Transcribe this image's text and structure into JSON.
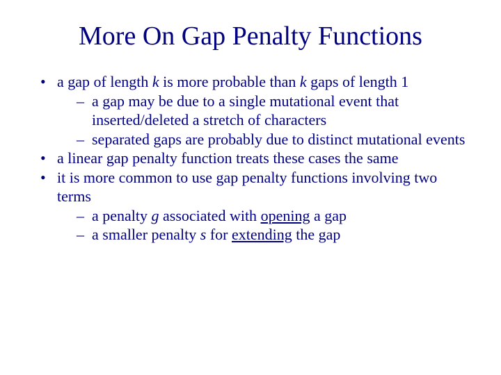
{
  "colors": {
    "text": "#000080",
    "background": "#ffffff"
  },
  "typography": {
    "title_family": "Times New Roman",
    "title_size_pt": 38,
    "body_family": "Times New Roman",
    "body_size_pt": 22
  },
  "title": "More On Gap Penalty Functions",
  "b1": {
    "pre": "a gap of length ",
    "k1": "k",
    "mid": " is more probable than ",
    "k2": "k",
    "post": " gaps of length 1",
    "sub1": "a gap may be due to a single mutational event that inserted/deleted a stretch of characters",
    "sub2": "separated gaps are probably due to distinct mutational events"
  },
  "b2": "a linear gap penalty function treats these cases the same",
  "b3": {
    "text": "it is more common to use gap penalty functions involving two terms",
    "sub1": {
      "pre": "a penalty ",
      "var": "g",
      "mid": " associated with ",
      "ul": "opening",
      "post": " a gap"
    },
    "sub2": {
      "pre": "a smaller penalty ",
      "var": "s",
      "mid": " for ",
      "ul": "extending",
      "post": " the gap"
    }
  }
}
